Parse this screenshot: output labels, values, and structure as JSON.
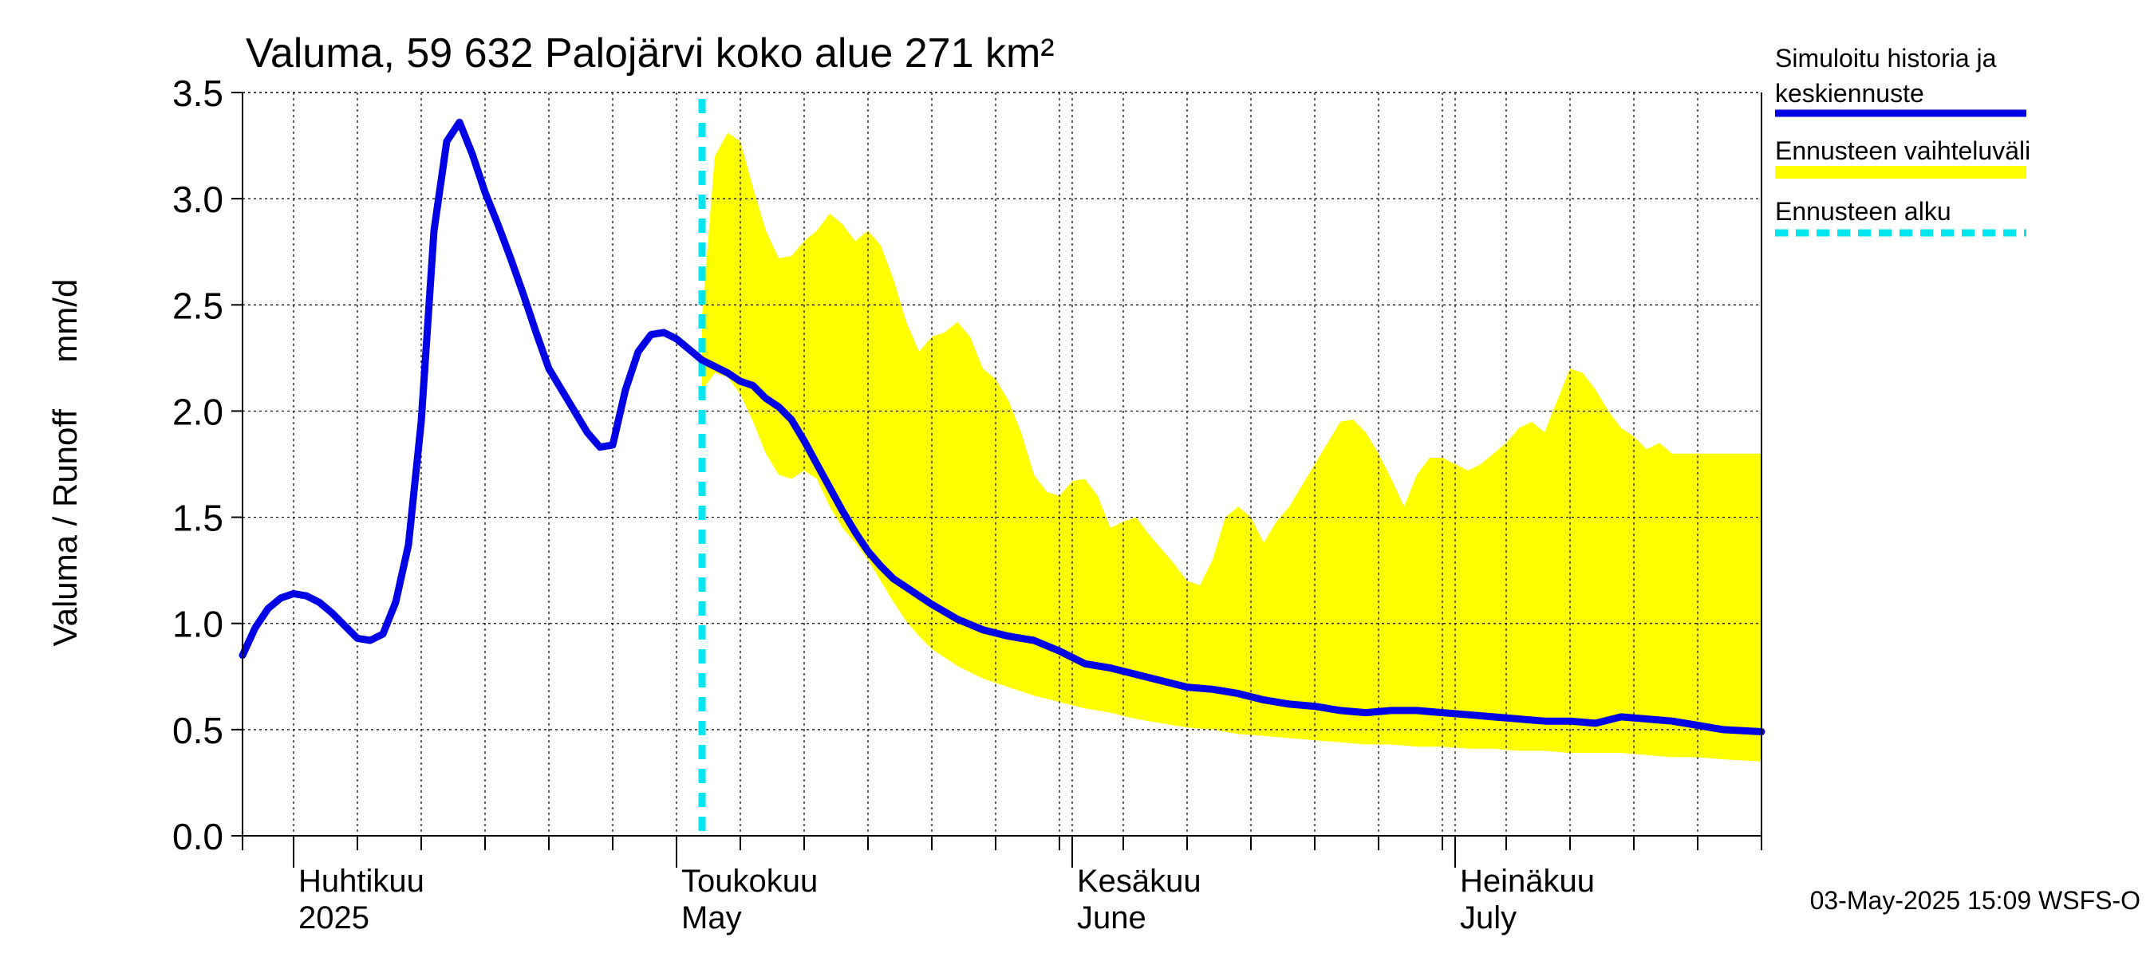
{
  "chart_data": {
    "type": "area",
    "title": "Valuma, 59 632 Palojärvi koko alue 271 km²",
    "ylabel": "Valuma / Runoff     mm/d",
    "xlabel": "",
    "ylim": [
      0,
      3.5
    ],
    "y_ticks": [
      0.0,
      0.5,
      1.0,
      1.5,
      2.0,
      2.5,
      3.0,
      3.5
    ],
    "y_tick_labels": [
      "0.0",
      "0.5",
      "1.0",
      "1.5",
      "2.0",
      "2.5",
      "3.0",
      "3.5"
    ],
    "x_range_days": [
      -4,
      115
    ],
    "x_day_origin": "2025-04-01",
    "grid": true,
    "month_ticks": [
      {
        "day": 0,
        "line1": "Huhtikuu",
        "line2": "2025"
      },
      {
        "day": 30,
        "line1": "Toukokuu",
        "line2": "May"
      },
      {
        "day": 61,
        "line1": "Kesäkuu",
        "line2": "June"
      },
      {
        "day": 91,
        "line1": "Heinäkuu",
        "line2": "July"
      }
    ],
    "forecast_start_day": 32,
    "legend": {
      "placement": "right",
      "entries": [
        {
          "label_lines": [
            "Simuloitu historia ja",
            "keskiennuste"
          ],
          "color": "#0000e6",
          "style": "line"
        },
        {
          "label_lines": [
            "Ennusteen vaihteluväli"
          ],
          "color": "#ffff00",
          "style": "band"
        },
        {
          "label_lines": [
            "Ennusteen alku"
          ],
          "color": "#00e5ee",
          "style": "dashed"
        }
      ]
    },
    "series": [
      {
        "name": "Simuloitu historia ja keskiennuste",
        "color": "#0000e6",
        "x": [
          -4,
          -3,
          -2,
          -1,
          0,
          1,
          2,
          3,
          4,
          5,
          6,
          7,
          8,
          9,
          10,
          11,
          12,
          13,
          14,
          15,
          16,
          17,
          18,
          19,
          20,
          21,
          22,
          23,
          24,
          25,
          26,
          27,
          28,
          29,
          30,
          31,
          32,
          33,
          34,
          35,
          36,
          37,
          38,
          39,
          40,
          41,
          42,
          43,
          44,
          45,
          46,
          47,
          48,
          49,
          50,
          52,
          54,
          56,
          58,
          60,
          62,
          64,
          66,
          68,
          70,
          72,
          74,
          76,
          78,
          80,
          82,
          84,
          86,
          88,
          90,
          92,
          94,
          96,
          98,
          100,
          102,
          104,
          106,
          108,
          110,
          112,
          115
        ],
        "values": [
          0.85,
          0.98,
          1.07,
          1.12,
          1.14,
          1.13,
          1.1,
          1.05,
          0.99,
          0.93,
          0.92,
          0.95,
          1.1,
          1.37,
          1.95,
          2.85,
          3.27,
          3.36,
          3.21,
          3.03,
          2.88,
          2.72,
          2.55,
          2.37,
          2.2,
          2.1,
          2.0,
          1.9,
          1.83,
          1.84,
          2.1,
          2.28,
          2.36,
          2.37,
          2.34,
          2.29,
          2.24,
          2.21,
          2.18,
          2.14,
          2.12,
          2.06,
          2.02,
          1.96,
          1.86,
          1.75,
          1.64,
          1.53,
          1.43,
          1.34,
          1.27,
          1.21,
          1.17,
          1.13,
          1.09,
          1.02,
          0.97,
          0.94,
          0.92,
          0.87,
          0.81,
          0.79,
          0.76,
          0.73,
          0.7,
          0.69,
          0.67,
          0.64,
          0.62,
          0.61,
          0.59,
          0.58,
          0.59,
          0.59,
          0.58,
          0.57,
          0.56,
          0.55,
          0.54,
          0.54,
          0.53,
          0.56,
          0.55,
          0.54,
          0.52,
          0.5,
          0.49
        ]
      },
      {
        "name": "Ennusteen vaihteluväli (yläraja)",
        "color": "#ffff00",
        "x": [
          32,
          33,
          34,
          35,
          36,
          37,
          38,
          39,
          40,
          41,
          42,
          43,
          44,
          45,
          46,
          47,
          48,
          49,
          50,
          51,
          52,
          53,
          54,
          55,
          56,
          57,
          58,
          59,
          60,
          61,
          62,
          63,
          64,
          65,
          66,
          67,
          68,
          69,
          70,
          71,
          72,
          73,
          74,
          75,
          76,
          77,
          78,
          79,
          80,
          81,
          82,
          83,
          84,
          85,
          86,
          87,
          88,
          89,
          90,
          91,
          92,
          93,
          94,
          95,
          96,
          97,
          98,
          99,
          100,
          101,
          102,
          103,
          104,
          105,
          106,
          107,
          108,
          109,
          110,
          111,
          112,
          113,
          114,
          115
        ],
        "values": [
          2.45,
          3.2,
          3.31,
          3.27,
          3.05,
          2.85,
          2.72,
          2.73,
          2.8,
          2.85,
          2.93,
          2.88,
          2.8,
          2.85,
          2.78,
          2.62,
          2.42,
          2.28,
          2.35,
          2.37,
          2.42,
          2.35,
          2.2,
          2.15,
          2.05,
          1.9,
          1.7,
          1.62,
          1.6,
          1.67,
          1.68,
          1.6,
          1.45,
          1.48,
          1.5,
          1.42,
          1.35,
          1.28,
          1.2,
          1.18,
          1.3,
          1.5,
          1.55,
          1.5,
          1.38,
          1.48,
          1.55,
          1.65,
          1.75,
          1.85,
          1.95,
          1.96,
          1.9,
          1.8,
          1.68,
          1.55,
          1.7,
          1.78,
          1.78,
          1.75,
          1.72,
          1.75,
          1.8,
          1.85,
          1.92,
          1.95,
          1.9,
          2.05,
          2.2,
          2.18,
          2.1,
          2.0,
          1.92,
          1.88,
          1.82,
          1.85,
          1.8,
          1.8,
          1.8,
          1.8,
          1.8,
          1.8,
          1.8,
          1.8
        ]
      },
      {
        "name": "Ennusteen vaihteluväli (alaraja)",
        "color": "#ffff00",
        "x": [
          32,
          33,
          34,
          35,
          36,
          37,
          38,
          39,
          40,
          41,
          42,
          43,
          44,
          45,
          46,
          47,
          48,
          49,
          50,
          52,
          54,
          56,
          58,
          60,
          62,
          64,
          66,
          68,
          70,
          72,
          74,
          76,
          78,
          80,
          82,
          84,
          86,
          88,
          90,
          92,
          94,
          96,
          98,
          100,
          102,
          104,
          106,
          108,
          110,
          112,
          115
        ],
        "values": [
          2.1,
          2.18,
          2.16,
          2.08,
          1.95,
          1.8,
          1.7,
          1.68,
          1.72,
          1.68,
          1.55,
          1.45,
          1.38,
          1.3,
          1.2,
          1.1,
          1.01,
          0.94,
          0.88,
          0.8,
          0.74,
          0.7,
          0.66,
          0.63,
          0.6,
          0.58,
          0.55,
          0.53,
          0.51,
          0.5,
          0.48,
          0.47,
          0.46,
          0.45,
          0.44,
          0.43,
          0.43,
          0.42,
          0.42,
          0.41,
          0.41,
          0.4,
          0.4,
          0.39,
          0.39,
          0.39,
          0.38,
          0.37,
          0.37,
          0.36,
          0.35
        ]
      }
    ]
  },
  "footer": {
    "timestamp": "03-May-2025 15:09 WSFS-O"
  }
}
